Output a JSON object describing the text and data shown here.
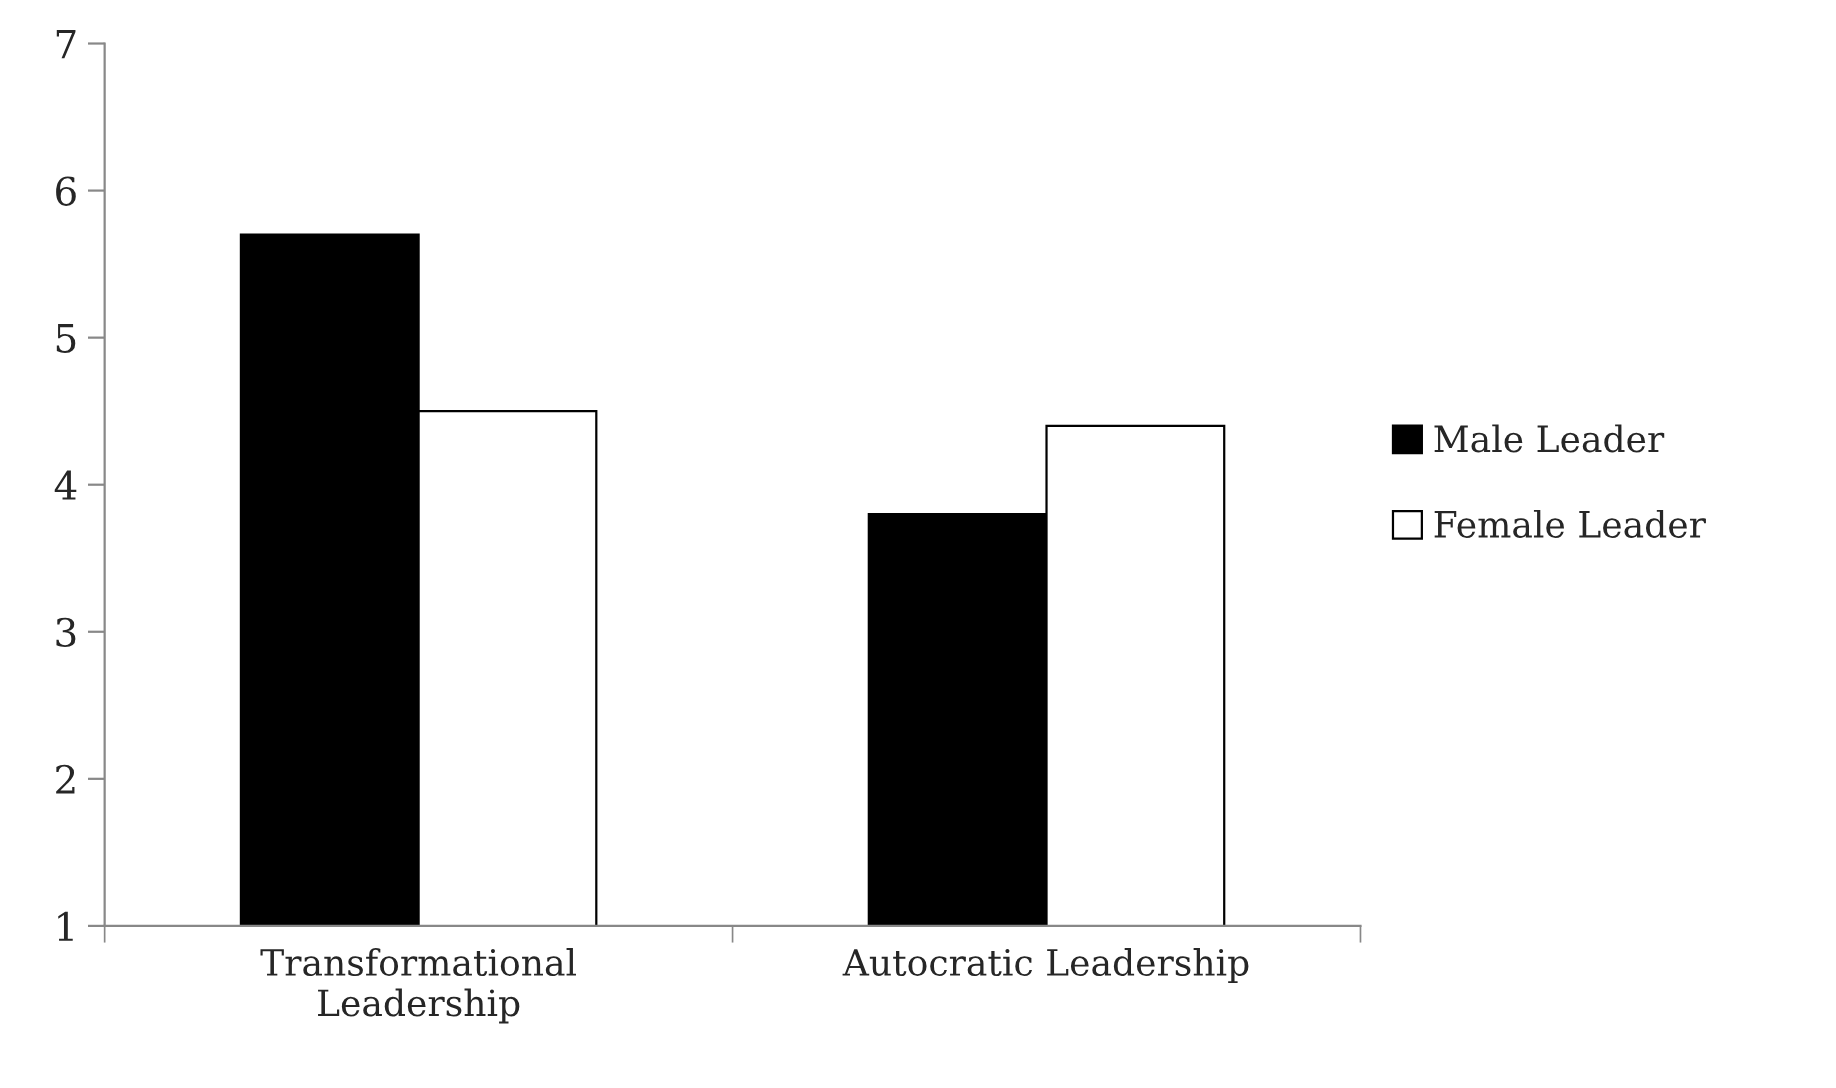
{
  "chart_data": {
    "type": "bar",
    "categories": [
      "Transformational\nLeadership",
      "Autocratic Leadership"
    ],
    "series": [
      {
        "name": "Male Leader",
        "color": "#000000",
        "values": [
          5.7,
          3.8
        ]
      },
      {
        "name": "Female Leader",
        "color": "#ffffff",
        "values": [
          4.5,
          4.4
        ]
      }
    ],
    "ylim": [
      1,
      7
    ],
    "yticks": [
      1,
      2,
      3,
      4,
      5,
      6,
      7
    ],
    "grid": false,
    "legend": "right"
  }
}
